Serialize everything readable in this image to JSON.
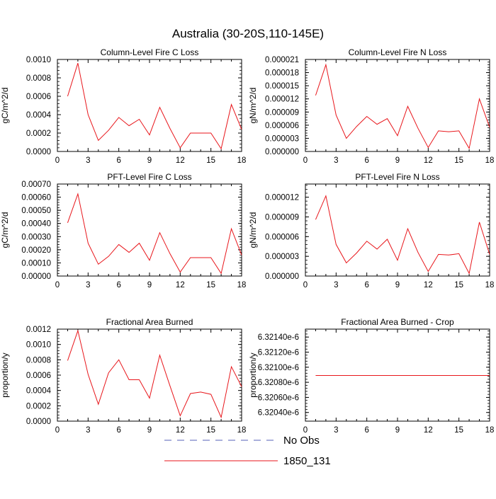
{
  "title": "Australia (30-20S,110-145E)",
  "colors": {
    "obs": "#5560b8",
    "model": "#e8161b",
    "axis": "#000000"
  },
  "legend": {
    "placement": "bottom-center",
    "items": [
      "No Obs",
      "1850_131"
    ]
  },
  "chart_data": [
    {
      "type": "line",
      "title": "Column-Level Fire C Loss",
      "xlabel": "",
      "ylabel": "gC/m^2/d",
      "xlim": [
        0,
        18
      ],
      "ylim": [
        0,
        0.001
      ],
      "xticks": [
        "0",
        "3",
        "6",
        "9",
        "12",
        "15",
        "18"
      ],
      "yticks": [
        "0.0000",
        "0.0002",
        "0.0004",
        "0.0006",
        "0.0008",
        "0.0010"
      ],
      "series": [
        {
          "name": "1850_131",
          "x": [
            1,
            2,
            3,
            4,
            5,
            6,
            7,
            8,
            9,
            10,
            11,
            12,
            13,
            14,
            15,
            16,
            17,
            18
          ],
          "values": [
            0.0006,
            0.00096,
            0.0004,
            0.00012,
            0.00023,
            0.00037,
            0.00028,
            0.00035,
            0.00018,
            0.00048,
            0.00025,
            4e-05,
            0.0002,
            0.0002,
            0.0002,
            3e-05,
            0.00051,
            0.00024
          ]
        }
      ]
    },
    {
      "type": "line",
      "title": "Column-Level Fire N Loss",
      "xlabel": "",
      "ylabel": "gN/m^2/d",
      "xlim": [
        0,
        18
      ],
      "ylim": [
        0,
        2.1e-05
      ],
      "xticks": [
        "0",
        "3",
        "6",
        "9",
        "12",
        "15",
        "18"
      ],
      "yticks": [
        "0.000000",
        "0.000003",
        "0.000006",
        "0.000009",
        "0.000012",
        "0.000015",
        "0.000018",
        "0.000021"
      ],
      "series": [
        {
          "name": "1850_131",
          "x": [
            1,
            2,
            3,
            4,
            5,
            6,
            7,
            8,
            9,
            10,
            11,
            12,
            13,
            14,
            15,
            16,
            17,
            18
          ],
          "values": [
            1.28e-05,
            1.98e-05,
            8.3e-06,
            3e-06,
            5.7e-06,
            8e-06,
            6.2e-06,
            7.5e-06,
            3.6e-06,
            1.03e-05,
            5.3e-06,
            9e-07,
            4.7e-06,
            4.5e-06,
            4.7e-06,
            7e-07,
            1.2e-05,
            5.5e-06
          ]
        }
      ]
    },
    {
      "type": "line",
      "title": "PFT-Level Fire C Loss",
      "xlabel": "",
      "ylabel": "gC/m^2/d",
      "xlim": [
        0,
        18
      ],
      "ylim": [
        0,
        0.0007
      ],
      "xticks": [
        "0",
        "3",
        "6",
        "9",
        "12",
        "15",
        "18"
      ],
      "yticks": [
        "0.00000",
        "0.00010",
        "0.00020",
        "0.00030",
        "0.00040",
        "0.00050",
        "0.00060",
        "0.00070"
      ],
      "series": [
        {
          "name": "1850_131",
          "x": [
            1,
            2,
            3,
            4,
            5,
            6,
            7,
            8,
            9,
            10,
            11,
            12,
            13,
            14,
            15,
            16,
            17,
            18
          ],
          "values": [
            0.000405,
            0.000625,
            0.00025,
            9e-05,
            0.00015,
            0.00024,
            0.00018,
            0.00025,
            0.00012,
            0.00033,
            0.00017,
            3e-05,
            0.00014,
            0.00014,
            0.00014,
            2e-05,
            0.00036,
            0.00016
          ]
        }
      ]
    },
    {
      "type": "line",
      "title": "PFT-Level Fire N Loss",
      "xlabel": "",
      "ylabel": "gN/m^2/d",
      "xlim": [
        0,
        18
      ],
      "ylim": [
        0,
        1.4e-05
      ],
      "xticks": [
        "0",
        "3",
        "6",
        "9",
        "12",
        "15",
        "18"
      ],
      "yticks": [
        "0.000000",
        "0.000003",
        "0.000006",
        "0.000009",
        "0.000012"
      ],
      "series": [
        {
          "name": "1850_131",
          "x": [
            1,
            2,
            3,
            4,
            5,
            6,
            7,
            8,
            9,
            10,
            11,
            12,
            13,
            14,
            15,
            16,
            17,
            18
          ],
          "values": [
            8.6e-06,
            1.22e-05,
            4.8e-06,
            2e-06,
            3.5e-06,
            5.3e-06,
            4.1e-06,
            5.6e-06,
            2.4e-06,
            7.2e-06,
            3.6e-06,
            7e-07,
            3.3e-06,
            3.2e-06,
            3.4e-06,
            4e-07,
            8.2e-06,
            3.3e-06
          ]
        }
      ]
    },
    {
      "type": "line",
      "title": "Fractional Area Burned",
      "xlabel": "",
      "ylabel": "proportion/y",
      "xlim": [
        0,
        18
      ],
      "ylim": [
        0,
        0.0012
      ],
      "xticks": [
        "0",
        "3",
        "6",
        "9",
        "12",
        "15",
        "18"
      ],
      "yticks": [
        "0.0000",
        "0.0002",
        "0.0004",
        "0.0006",
        "0.0008",
        "0.0010",
        "0.0012"
      ],
      "series": [
        {
          "name": "1850_131",
          "x": [
            1,
            2,
            3,
            4,
            5,
            6,
            7,
            8,
            9,
            10,
            11,
            12,
            13,
            14,
            15,
            16,
            17,
            18
          ],
          "values": [
            0.00079,
            0.00118,
            0.00061,
            0.00022,
            0.00063,
            0.0008,
            0.00054,
            0.00054,
            0.0003,
            0.00086,
            0.00046,
            7e-05,
            0.00036,
            0.00038,
            0.00035,
            5e-05,
            0.00071,
            0.00045
          ]
        }
      ]
    },
    {
      "type": "line",
      "title": "Fractional Area Burned - Crop",
      "xlabel": "",
      "ylabel": "proportion/y",
      "xlim": [
        0,
        18
      ],
      "ylim": [
        6.320285e-06,
        6.321505e-06
      ],
      "xticks": [
        "0",
        "3",
        "6",
        "9",
        "12",
        "15",
        "18"
      ],
      "yticks": [
        "6.32040e-6",
        "6.32060e-6",
        "6.32080e-6",
        "6.32100e-6",
        "6.32120e-6",
        "6.32140e-6"
      ],
      "series": [
        {
          "name": "1850_131",
          "x": [
            1,
            2,
            3,
            4,
            5,
            6,
            7,
            8,
            9,
            10,
            11,
            12,
            13,
            14,
            15,
            16,
            17,
            18
          ],
          "values": [
            6.32089e-06,
            6.32089e-06,
            6.32089e-06,
            6.32089e-06,
            6.32089e-06,
            6.32089e-06,
            6.32089e-06,
            6.32089e-06,
            6.32089e-06,
            6.32089e-06,
            6.32089e-06,
            6.32089e-06,
            6.32089e-06,
            6.32089e-06,
            6.32089e-06,
            6.32089e-06,
            6.32089e-06,
            6.32089e-06
          ]
        }
      ]
    }
  ]
}
